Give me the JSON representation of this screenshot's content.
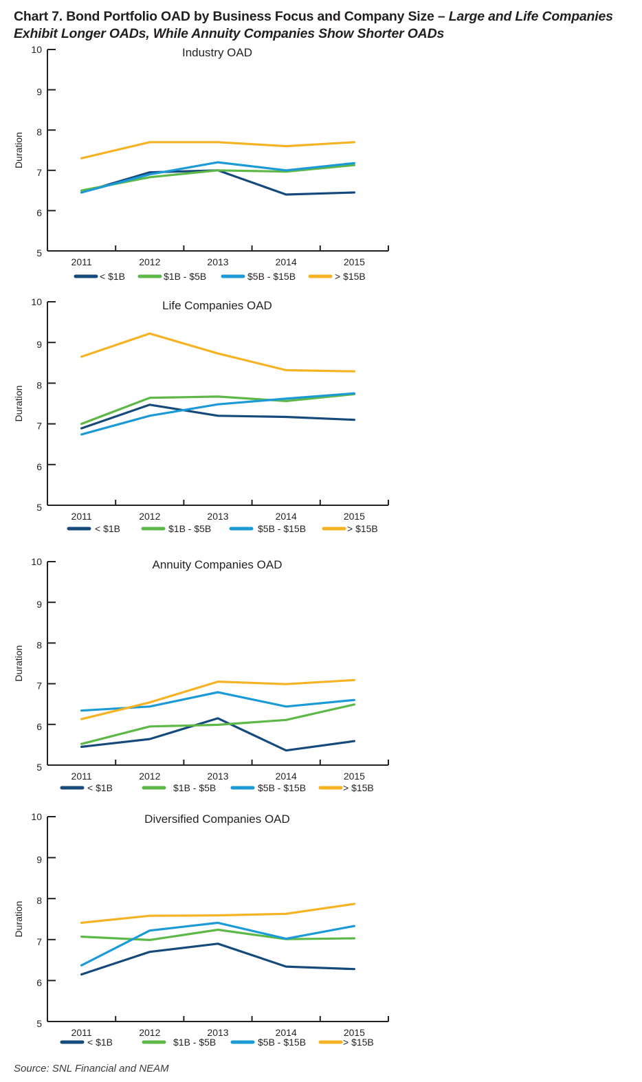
{
  "title": {
    "main": "Chart 7. Bond Portfolio OAD by Business Focus and Company Size – ",
    "italic": "Large and Life Companies Exhibit Longer OADs, While Annuity Companies Show Shorter OADs"
  },
  "source": "Source: SNL Financial and NEAM",
  "series_styles": [
    {
      "name": "< $1B",
      "color": "#154a7a"
    },
    {
      "name": "$1B - $5B",
      "color": "#5db848"
    },
    {
      "name": "$5B - $15B",
      "color": "#1b9ad6"
    },
    {
      "name": "> $15B",
      "color": "#f5b324"
    }
  ],
  "chart_data": [
    {
      "type": "line",
      "title": "Industry OAD",
      "xlabel": "",
      "ylabel": "Duration",
      "categories": [
        "2011",
        "2012",
        "2013",
        "2014",
        "2015"
      ],
      "ylim": [
        5,
        10
      ],
      "yticks": [
        "5",
        "6",
        "7",
        "8",
        "9",
        "10"
      ],
      "grid": false,
      "legend": "bottom",
      "series": [
        {
          "name": "< $1B",
          "values": [
            6.45,
            6.95,
            7.0,
            6.4,
            6.45
          ]
        },
        {
          "name": "$1B - $5B",
          "values": [
            6.5,
            6.83,
            7.0,
            6.97,
            7.13
          ]
        },
        {
          "name": "$5B - $15B",
          "values": [
            6.45,
            6.9,
            7.2,
            7.0,
            7.18
          ]
        },
        {
          "name": "> $15B",
          "values": [
            7.3,
            7.7,
            7.7,
            7.6,
            7.7
          ]
        }
      ]
    },
    {
      "type": "line",
      "title": "Life Companies OAD",
      "xlabel": "",
      "ylabel": "Duration",
      "categories": [
        "2011",
        "2012",
        "2013",
        "2014",
        "2015"
      ],
      "ylim": [
        5,
        10
      ],
      "yticks": [
        "5",
        "6",
        "7",
        "8",
        "9",
        "10"
      ],
      "grid": false,
      "legend": "bottom",
      "series": [
        {
          "name": "< $1B",
          "values": [
            6.89,
            7.47,
            7.2,
            7.17,
            7.1
          ]
        },
        {
          "name": "$1B - $5B",
          "values": [
            7.0,
            7.64,
            7.67,
            7.56,
            7.73
          ]
        },
        {
          "name": "$5B - $15B",
          "values": [
            6.74,
            7.2,
            7.48,
            7.62,
            7.75
          ]
        },
        {
          "name": "> $15B",
          "values": [
            8.65,
            9.22,
            8.73,
            8.32,
            8.29
          ]
        }
      ]
    },
    {
      "type": "line",
      "title": "Annuity Companies OAD",
      "xlabel": "",
      "ylabel": "Duration",
      "categories": [
        "2011",
        "2012",
        "2013",
        "2014",
        "2015"
      ],
      "ylim": [
        5,
        10
      ],
      "yticks": [
        "5",
        "6",
        "7",
        "8",
        "9",
        "10"
      ],
      "grid": false,
      "legend": "bottom",
      "series": [
        {
          "name": "< $1B",
          "values": [
            5.45,
            5.64,
            6.15,
            5.36,
            5.59
          ]
        },
        {
          "name": "$1B - $5B",
          "values": [
            5.52,
            5.95,
            5.99,
            6.11,
            6.49
          ]
        },
        {
          "name": "$5B - $15B",
          "values": [
            6.34,
            6.44,
            6.79,
            6.44,
            6.6
          ]
        },
        {
          "name": "> $15B",
          "values": [
            6.13,
            6.54,
            7.05,
            6.99,
            7.09
          ]
        }
      ]
    },
    {
      "type": "line",
      "title": "Diversified Companies OAD",
      "xlabel": "",
      "ylabel": "Duration",
      "categories": [
        "2011",
        "2012",
        "2013",
        "2014",
        "2015"
      ],
      "ylim": [
        5,
        10
      ],
      "yticks": [
        "5",
        "6",
        "7",
        "8",
        "9",
        "10"
      ],
      "grid": false,
      "legend": "bottom",
      "series": [
        {
          "name": "< $1B",
          "values": [
            6.15,
            6.7,
            6.9,
            6.34,
            6.28
          ]
        },
        {
          "name": "$1B - $5B",
          "values": [
            7.07,
            6.99,
            7.24,
            7.01,
            7.03
          ]
        },
        {
          "name": "$5B - $15B",
          "values": [
            6.37,
            7.22,
            7.41,
            7.02,
            7.33
          ]
        },
        {
          "name": "> $15B",
          "values": [
            7.41,
            7.58,
            7.59,
            7.63,
            7.87
          ]
        }
      ]
    }
  ]
}
